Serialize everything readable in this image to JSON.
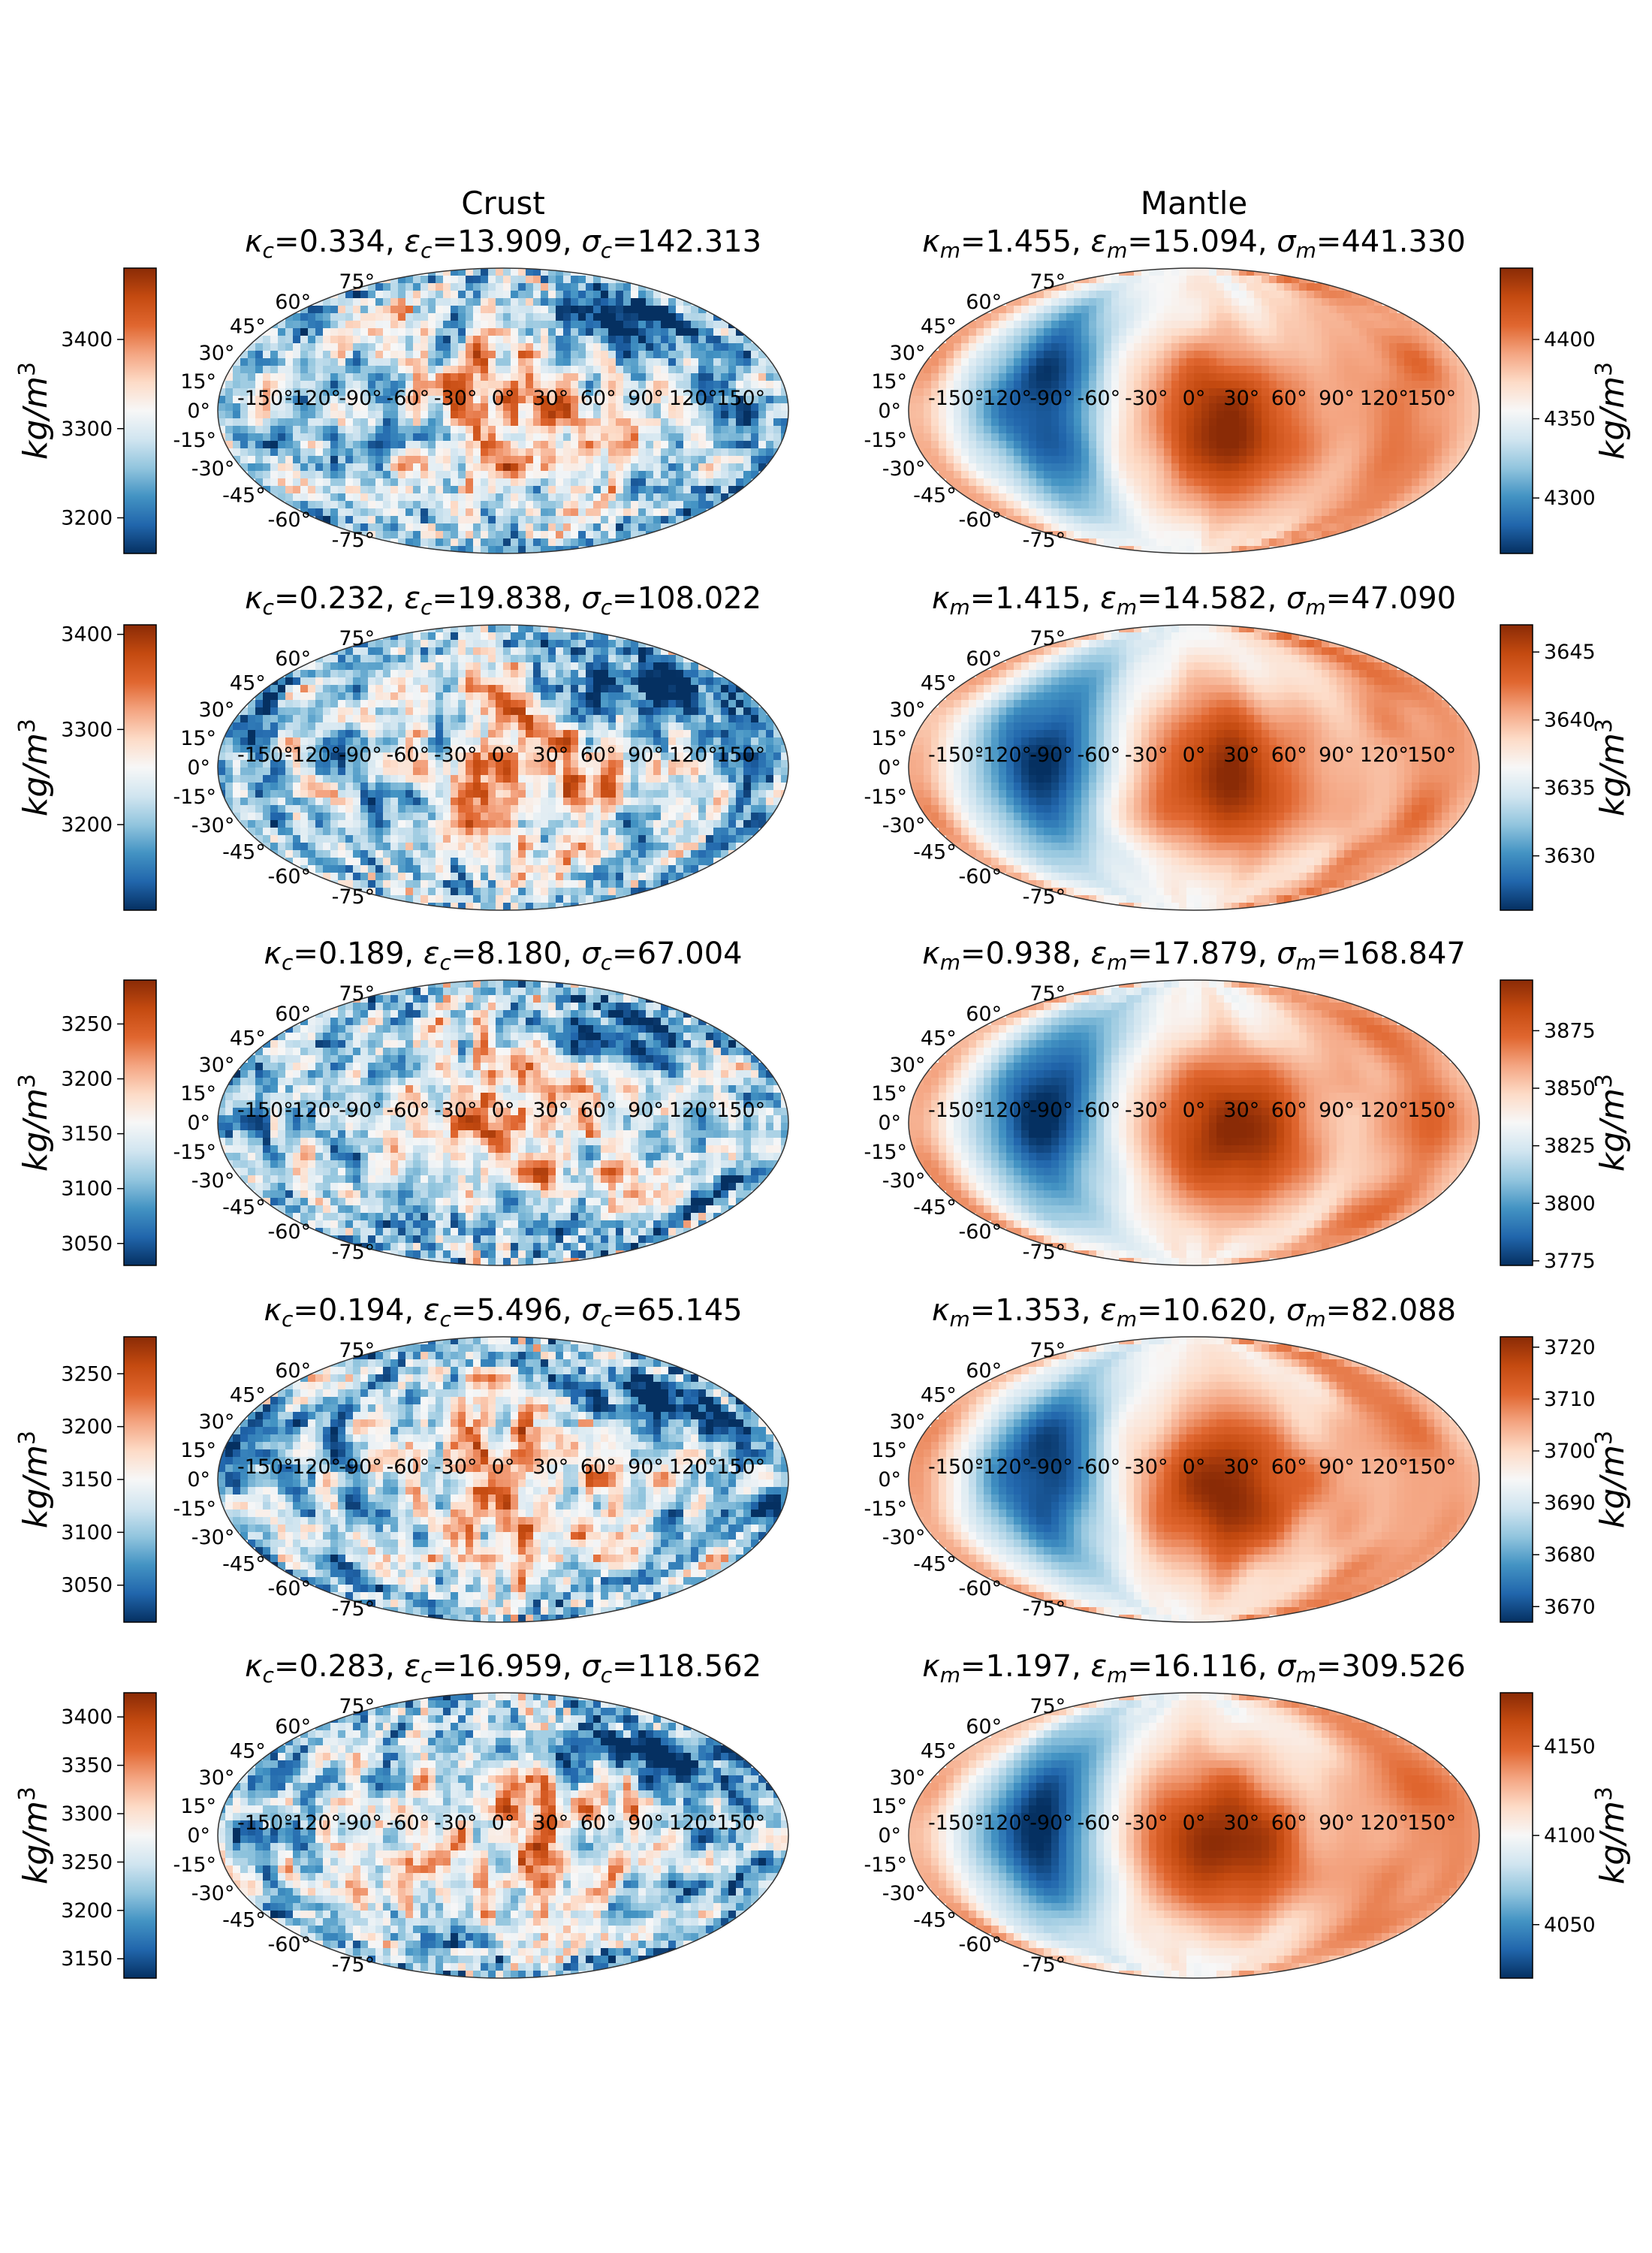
{
  "figure": {
    "columns": [
      "Crust",
      "Mantle"
    ],
    "colorbar_unit": "kg/m",
    "colorbar_unit_power": "3",
    "colormap": [
      "#053061",
      "#2166ac",
      "#4393c3",
      "#92c5de",
      "#d1e5f0",
      "#f7f7f7",
      "#fddbc7",
      "#f4a582",
      "#e0662f",
      "#c44a10",
      "#8a2b06"
    ]
  },
  "chart_data": {
    "type": "heatmap",
    "projection": "mollweide",
    "lon_ticks": [
      "-150°",
      "-120°",
      "-90°",
      "-60°",
      "-30°",
      "0°",
      "30°",
      "60°",
      "90°",
      "120°",
      "150°"
    ],
    "lat_ticks": [
      "75°",
      "60°",
      "45°",
      "30°",
      "15°",
      "0°",
      "-15°",
      "-30°",
      "-45°",
      "-60°",
      "-75°"
    ],
    "rows": [
      {
        "crust": {
          "title": {
            "kappa": "0.334",
            "epsilon": "13.909",
            "sigma": "142.313"
          },
          "colorbar": {
            "range": [
              3160,
              3480
            ],
            "ticks": [
              3200,
              3300,
              3400
            ]
          }
        },
        "mantle": {
          "title": {
            "kappa": "1.455",
            "epsilon": "15.094",
            "sigma": "441.330"
          },
          "colorbar": {
            "range": [
              4265,
              4445
            ],
            "ticks": [
              4300,
              4350,
              4400
            ]
          }
        }
      },
      {
        "crust": {
          "title": {
            "kappa": "0.232",
            "epsilon": "19.838",
            "sigma": "108.022"
          },
          "colorbar": {
            "range": [
              3110,
              3410
            ],
            "ticks": [
              3200,
              3300,
              3400
            ]
          }
        },
        "mantle": {
          "title": {
            "kappa": "1.415",
            "epsilon": "14.582",
            "sigma": "47.090"
          },
          "colorbar": {
            "range": [
              3626,
              3647
            ],
            "ticks": [
              3630,
              3635,
              3640,
              3645
            ]
          }
        }
      },
      {
        "crust": {
          "title": {
            "kappa": "0.189",
            "epsilon": "8.180",
            "sigma": "67.004"
          },
          "colorbar": {
            "range": [
              3030,
              3290
            ],
            "ticks": [
              3050,
              3100,
              3150,
              3200,
              3250
            ]
          }
        },
        "mantle": {
          "title": {
            "kappa": "0.938",
            "epsilon": "17.879",
            "sigma": "168.847"
          },
          "colorbar": {
            "range": [
              3773,
              3897
            ],
            "ticks": [
              3775,
              3800,
              3825,
              3850,
              3875
            ]
          }
        }
      },
      {
        "crust": {
          "title": {
            "kappa": "0.194",
            "epsilon": "5.496",
            "sigma": "65.145"
          },
          "colorbar": {
            "range": [
              3015,
              3285
            ],
            "ticks": [
              3050,
              3100,
              3150,
              3200,
              3250
            ]
          }
        },
        "mantle": {
          "title": {
            "kappa": "1.353",
            "epsilon": "10.620",
            "sigma": "82.088"
          },
          "colorbar": {
            "range": [
              3667,
              3722
            ],
            "ticks": [
              3670,
              3680,
              3690,
              3700,
              3710,
              3720
            ]
          }
        }
      },
      {
        "crust": {
          "title": {
            "kappa": "0.283",
            "epsilon": "16.959",
            "sigma": "118.562"
          },
          "colorbar": {
            "range": [
              3130,
              3425
            ],
            "ticks": [
              3150,
              3200,
              3250,
              3300,
              3350,
              3400
            ]
          }
        },
        "mantle": {
          "title": {
            "kappa": "1.197",
            "epsilon": "16.116",
            "sigma": "309.526"
          },
          "colorbar": {
            "range": [
              4020,
              4180
            ],
            "ticks": [
              4050,
              4100,
              4150
            ]
          }
        }
      }
    ]
  }
}
